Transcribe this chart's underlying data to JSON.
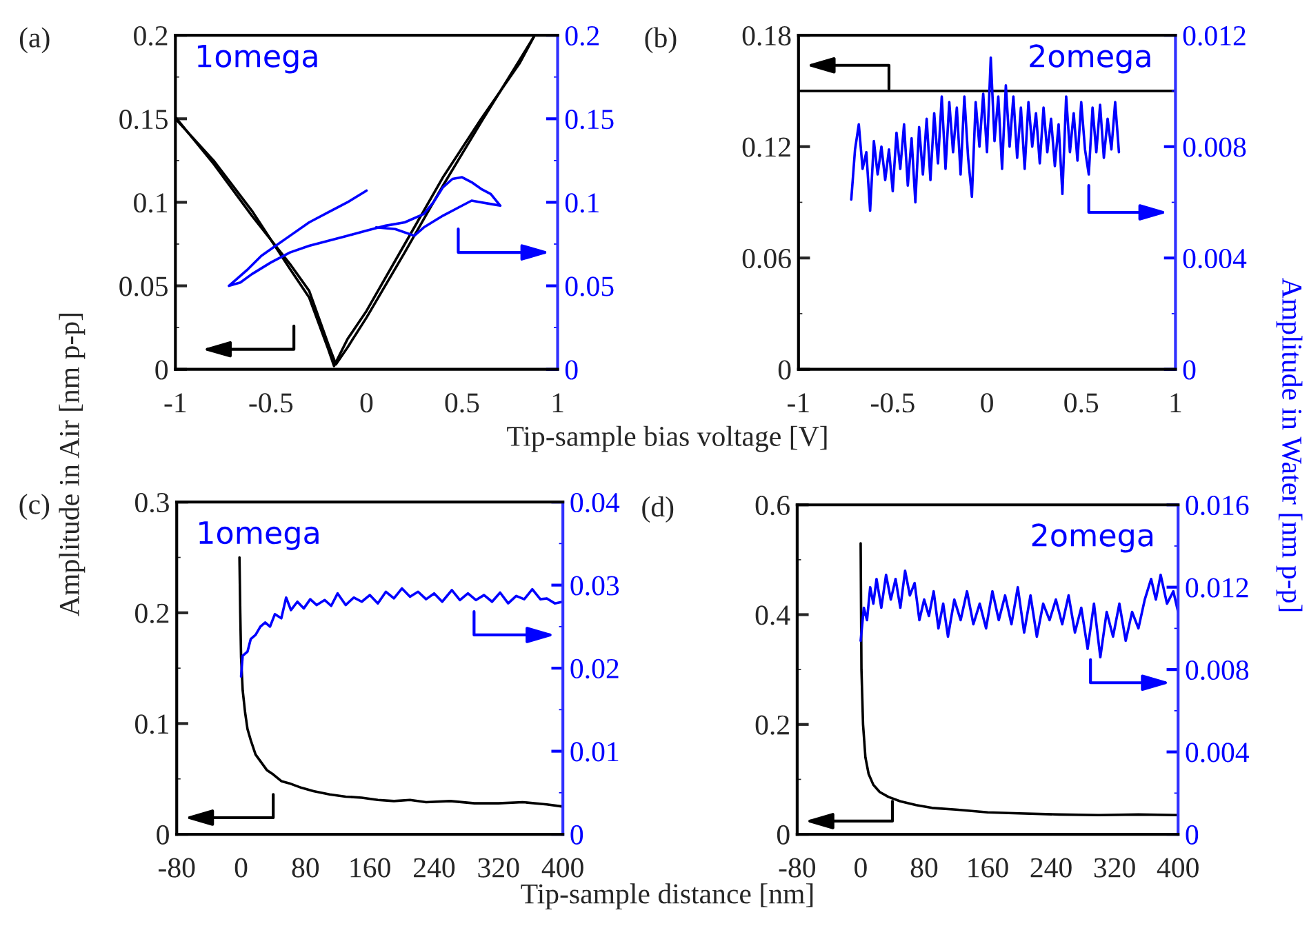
{
  "chart_data": [
    {
      "type": "line",
      "title": "(a)",
      "xlabel": "Tip-sample bias voltage [V]",
      "ylabel": "Amplitude in Air [nm p-p]",
      "annotations": [
        "1omega"
      ],
      "xlim": [
        -1,
        1
      ],
      "xticks": [
        -1,
        -0.5,
        0,
        0.5,
        1
      ],
      "ylim": [
        0,
        0.2
      ],
      "yticks": [
        0,
        0.05,
        0.1,
        0.15,
        0.2
      ],
      "y2lim": [
        0,
        0.2
      ],
      "y2ticks": [
        0,
        0.05,
        0.1,
        0.15,
        0.2
      ],
      "grid": false,
      "legend": false,
      "series": [
        {
          "color": "#000000",
          "x": [
            -1,
            -0.8,
            -0.6,
            -0.4,
            -0.3,
            -0.2,
            -0.17,
            -0.1,
            0,
            0.2,
            0.4,
            0.6,
            0.8,
            0.88
          ],
          "values": [
            0.15,
            0.125,
            0.095,
            0.06,
            0.043,
            0.012,
            0.002,
            0.018,
            0.035,
            0.075,
            0.115,
            0.15,
            0.183,
            0.2
          ]
        },
        {
          "color": "#000000",
          "x": [
            -1,
            -0.8,
            -0.6,
            -0.4,
            -0.3,
            -0.2,
            -0.16,
            -0.1,
            0,
            0.2,
            0.4,
            0.6,
            0.8,
            0.88
          ],
          "values": [
            0.151,
            0.123,
            0.092,
            0.063,
            0.047,
            0.015,
            0.003,
            0.013,
            0.031,
            0.07,
            0.11,
            0.148,
            0.185,
            0.2
          ]
        },
        {
          "color": "#0000ff",
          "axis": "y2",
          "x": [
            0,
            -0.1,
            -0.2,
            -0.3,
            -0.4,
            -0.5,
            -0.55,
            -0.62,
            -0.72,
            -0.66,
            -0.6,
            -0.5,
            -0.4,
            -0.3,
            -0.2,
            -0.1,
            0,
            0.1,
            0.2,
            0.3,
            0.35,
            0.4,
            0.45,
            0.5,
            0.55,
            0.6,
            0.65,
            0.7,
            0.65,
            0.6,
            0.55,
            0.5,
            0.4,
            0.3,
            0.25,
            0.15,
            0.05
          ],
          "values": [
            0.107,
            0.1,
            0.094,
            0.088,
            0.08,
            0.072,
            0.068,
            0.06,
            0.05,
            0.052,
            0.057,
            0.064,
            0.07,
            0.074,
            0.077,
            0.08,
            0.083,
            0.086,
            0.088,
            0.093,
            0.1,
            0.109,
            0.114,
            0.115,
            0.112,
            0.108,
            0.105,
            0.098,
            0.099,
            0.1,
            0.101,
            0.098,
            0.092,
            0.085,
            0.08,
            0.084,
            0.085
          ]
        }
      ]
    },
    {
      "type": "line",
      "title": "(b)",
      "y2label": "Amplitude in Water [nm p-p]",
      "annotations": [
        "2omega"
      ],
      "xlim": [
        -1,
        1
      ],
      "xticks": [
        -1,
        -0.5,
        0,
        0.5,
        1
      ],
      "ylim": [
        0,
        0.18
      ],
      "yticks": [
        0,
        0.06,
        0.12,
        0.18
      ],
      "y2lim": [
        0,
        0.012
      ],
      "y2ticks": [
        0,
        0.004,
        0.008,
        0.012
      ],
      "grid": false,
      "legend": false,
      "series": [
        {
          "color": "#000000",
          "x": [
            -1,
            -0.5,
            0,
            0.5,
            1
          ],
          "values": [
            0.15,
            0.15,
            0.15,
            0.15,
            0.15
          ]
        },
        {
          "color": "#0000ff",
          "axis": "y2",
          "x": [
            -0.72,
            -0.7,
            -0.68,
            -0.66,
            -0.64,
            -0.62,
            -0.6,
            -0.58,
            -0.56,
            -0.54,
            -0.52,
            -0.5,
            -0.48,
            -0.46,
            -0.44,
            -0.42,
            -0.4,
            -0.38,
            -0.36,
            -0.34,
            -0.32,
            -0.3,
            -0.28,
            -0.26,
            -0.24,
            -0.22,
            -0.2,
            -0.18,
            -0.16,
            -0.14,
            -0.12,
            -0.1,
            -0.08,
            -0.06,
            -0.04,
            -0.02,
            0.0,
            0.02,
            0.04,
            0.06,
            0.08,
            0.1,
            0.12,
            0.14,
            0.16,
            0.18,
            0.2,
            0.22,
            0.24,
            0.26,
            0.28,
            0.3,
            0.32,
            0.34,
            0.36,
            0.38,
            0.4,
            0.42,
            0.44,
            0.46,
            0.48,
            0.5,
            0.52,
            0.54,
            0.56,
            0.58,
            0.6,
            0.62,
            0.64,
            0.66,
            0.68,
            0.7
          ],
          "values": [
            0.0061,
            0.0079,
            0.0088,
            0.0072,
            0.0078,
            0.0057,
            0.0082,
            0.007,
            0.008,
            0.0068,
            0.0079,
            0.0064,
            0.0085,
            0.0072,
            0.0088,
            0.0066,
            0.0083,
            0.006,
            0.0087,
            0.007,
            0.009,
            0.0068,
            0.0092,
            0.0074,
            0.0098,
            0.0072,
            0.0096,
            0.0078,
            0.0094,
            0.007,
            0.0098,
            0.0076,
            0.0062,
            0.0096,
            0.008,
            0.0099,
            0.0078,
            0.0112,
            0.0082,
            0.0098,
            0.0072,
            0.0102,
            0.008,
            0.0098,
            0.0076,
            0.0094,
            0.0072,
            0.0096,
            0.008,
            0.0092,
            0.0074,
            0.0094,
            0.0078,
            0.009,
            0.0073,
            0.0088,
            0.0063,
            0.0098,
            0.0078,
            0.0092,
            0.0075,
            0.0096,
            0.0079,
            0.007,
            0.0094,
            0.0078,
            0.0095,
            0.0076,
            0.009,
            0.0079,
            0.0096,
            0.0078
          ]
        }
      ]
    },
    {
      "type": "line",
      "title": "(c)",
      "xlabel": "Tip-sample distance [nm]",
      "annotations": [
        "1omega"
      ],
      "xlim": [
        -80,
        400
      ],
      "xticks": [
        -80,
        0,
        80,
        160,
        240,
        320,
        400
      ],
      "ylim": [
        0,
        0.3
      ],
      "yticks": [
        0,
        0.1,
        0.2,
        0.3
      ],
      "y2lim": [
        0,
        0.04
      ],
      "y2ticks": [
        0,
        0.01,
        0.02,
        0.03,
        0.04
      ],
      "grid": false,
      "legend": false,
      "series": [
        {
          "color": "#000000",
          "x": [
            -2,
            -1,
            0,
            2,
            5,
            8,
            12,
            18,
            25,
            32,
            40,
            50,
            60,
            75,
            90,
            110,
            130,
            150,
            170,
            190,
            210,
            230,
            260,
            290,
            320,
            350,
            380,
            400
          ],
          "values": [
            0.25,
            0.2,
            0.16,
            0.13,
            0.11,
            0.095,
            0.085,
            0.072,
            0.065,
            0.058,
            0.054,
            0.048,
            0.046,
            0.042,
            0.039,
            0.036,
            0.034,
            0.033,
            0.031,
            0.03,
            0.031,
            0.029,
            0.03,
            0.028,
            0.028,
            0.029,
            0.027,
            0.025
          ]
        },
        {
          "color": "#0000ff",
          "axis": "y2",
          "x": [
            0,
            2,
            8,
            12,
            18,
            24,
            30,
            36,
            42,
            50,
            56,
            62,
            70,
            78,
            86,
            94,
            104,
            112,
            120,
            130,
            140,
            150,
            160,
            170,
            180,
            190,
            200,
            210,
            220,
            230,
            240,
            250,
            262,
            272,
            282,
            292,
            302,
            312,
            322,
            332,
            342,
            352,
            362,
            372,
            380,
            390,
            400
          ],
          "values": [
            0.019,
            0.0215,
            0.022,
            0.0235,
            0.024,
            0.025,
            0.0255,
            0.025,
            0.0265,
            0.026,
            0.0285,
            0.027,
            0.028,
            0.0272,
            0.0283,
            0.0276,
            0.0282,
            0.0275,
            0.029,
            0.0276,
            0.0285,
            0.028,
            0.0288,
            0.0278,
            0.0292,
            0.0284,
            0.0296,
            0.0286,
            0.0292,
            0.0283,
            0.029,
            0.028,
            0.0294,
            0.0282,
            0.029,
            0.0282,
            0.0288,
            0.028,
            0.0291,
            0.0278,
            0.0287,
            0.0283,
            0.0295,
            0.0283,
            0.0284,
            0.0278,
            0.028
          ]
        }
      ]
    },
    {
      "type": "line",
      "title": "(d)",
      "annotations": [
        "2omega"
      ],
      "xlim": [
        -80,
        400
      ],
      "xticks": [
        -80,
        0,
        80,
        160,
        240,
        320,
        400
      ],
      "ylim": [
        0,
        0.6
      ],
      "yticks": [
        0,
        0.2,
        0.4,
        0.6
      ],
      "y2lim": [
        0,
        0.016
      ],
      "y2ticks": [
        0,
        0.004,
        0.008,
        0.012,
        0.016
      ],
      "grid": false,
      "legend": false,
      "series": [
        {
          "color": "#000000",
          "x": [
            0,
            1,
            3,
            6,
            10,
            16,
            24,
            35,
            50,
            70,
            90,
            120,
            160,
            200,
            250,
            300,
            350,
            400
          ],
          "values": [
            0.53,
            0.3,
            0.2,
            0.14,
            0.11,
            0.09,
            0.077,
            0.068,
            0.06,
            0.053,
            0.048,
            0.045,
            0.04,
            0.038,
            0.036,
            0.035,
            0.036,
            0.035
          ]
        },
        {
          "color": "#0000ff",
          "axis": "y2",
          "x": [
            0,
            4,
            8,
            12,
            16,
            20,
            26,
            32,
            38,
            44,
            50,
            56,
            62,
            68,
            74,
            80,
            86,
            92,
            98,
            104,
            110,
            118,
            126,
            134,
            142,
            150,
            158,
            166,
            174,
            182,
            190,
            198,
            206,
            214,
            222,
            230,
            238,
            246,
            254,
            262,
            270,
            278,
            286,
            294,
            302,
            310,
            318,
            326,
            334,
            342,
            350,
            358,
            366,
            372,
            378,
            386,
            394,
            400
          ],
          "values": [
            0.0094,
            0.011,
            0.0104,
            0.012,
            0.0112,
            0.0124,
            0.011,
            0.0126,
            0.0114,
            0.0124,
            0.011,
            0.0128,
            0.0116,
            0.0122,
            0.0104,
            0.0114,
            0.0106,
            0.0118,
            0.01,
            0.0112,
            0.0096,
            0.0114,
            0.0104,
            0.0118,
            0.0102,
            0.0112,
            0.01,
            0.0118,
            0.0104,
            0.0116,
            0.0102,
            0.012,
            0.0098,
            0.0116,
            0.0096,
            0.0112,
            0.0104,
            0.0114,
            0.0102,
            0.0116,
            0.0098,
            0.011,
            0.009,
            0.0112,
            0.0086,
            0.0108,
            0.0096,
            0.0112,
            0.0094,
            0.0108,
            0.01,
            0.0114,
            0.0124,
            0.0114,
            0.0126,
            0.0112,
            0.0118,
            0.0108
          ]
        }
      ]
    }
  ]
}
